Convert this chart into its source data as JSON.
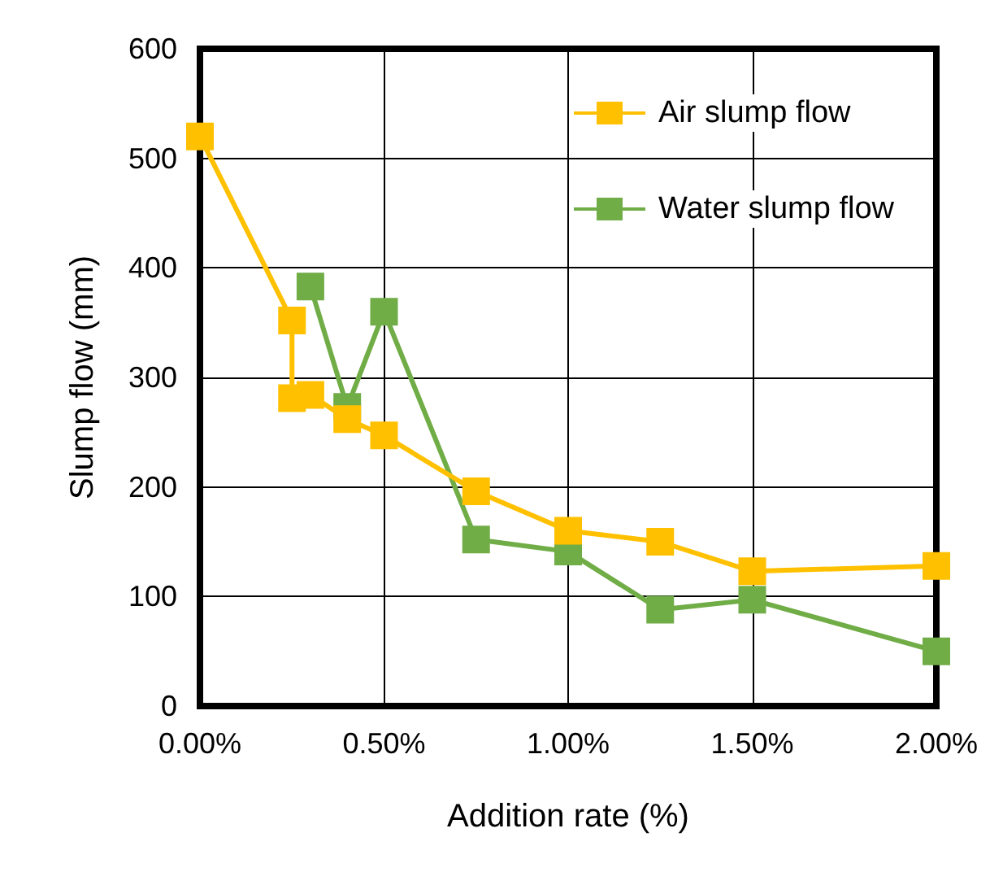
{
  "chart_data": {
    "type": "line",
    "xlabel": "Addition rate (%)",
    "ylabel": "Slump flow (mm)",
    "xlim": [
      0,
      2
    ],
    "xticks": [
      {
        "value": 0,
        "label": "0.00%"
      },
      {
        "value": 0.5,
        "label": "0.50%"
      },
      {
        "value": 1,
        "label": "1.00%"
      },
      {
        "value": 1.5,
        "label": "1.50%"
      },
      {
        "value": 2,
        "label": "2.00%"
      }
    ],
    "ylim": [
      0,
      600
    ],
    "yticks": [
      0,
      100,
      200,
      300,
      400,
      500,
      600
    ],
    "grid": true,
    "legend": "top right",
    "marker": "square",
    "line_style": "solid",
    "series": [
      {
        "name": "Air slump flow",
        "color": "#ffc000",
        "x": [
          0,
          0.25,
          0.25,
          0.3,
          0.4,
          0.5,
          0.75,
          1,
          1.25,
          1.5,
          2
        ],
        "values": [
          520,
          352,
          281,
          284,
          262,
          247,
          196,
          160,
          150,
          123,
          128
        ]
      },
      {
        "name": "Water slump flow",
        "color": "#70ad47",
        "x": [
          0.3,
          0.4,
          0.5,
          0.75,
          1,
          1.25,
          1.5,
          2
        ],
        "values": [
          383,
          273,
          360,
          152,
          141,
          88,
          97,
          50
        ]
      }
    ]
  }
}
